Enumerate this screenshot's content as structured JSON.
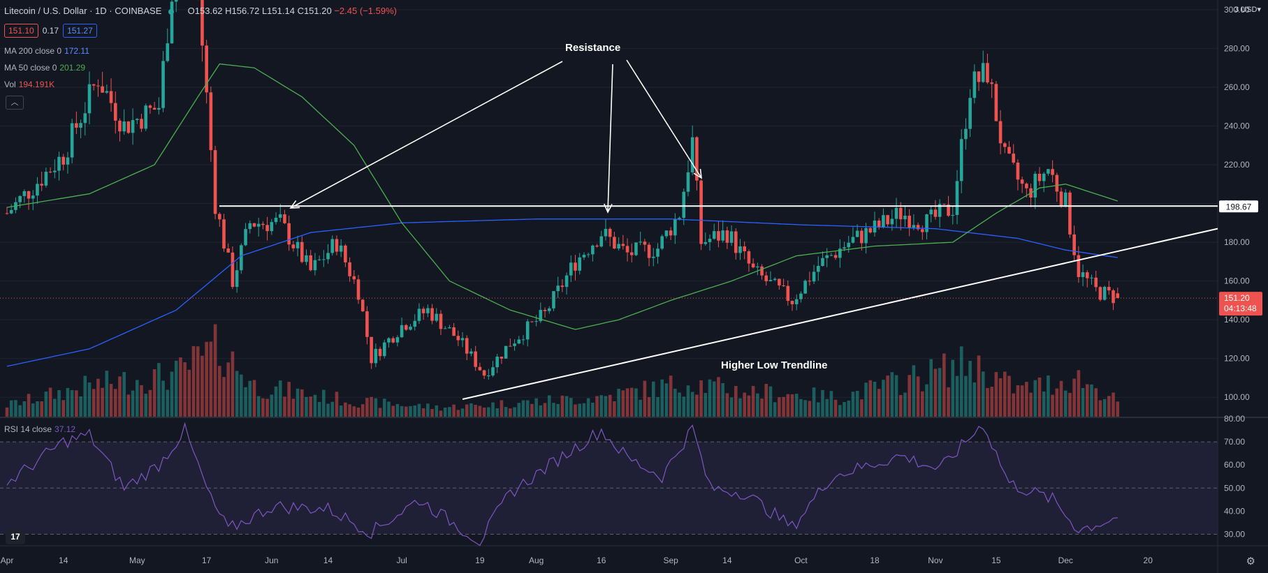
{
  "header": {
    "symbol": "Litecoin / U.S. Dollar · 1D · COINBASE",
    "open": "O153.62",
    "high": "H156.72",
    "low": "L151.14",
    "close": "C151.20",
    "change": "−2.45 (−1.59%)",
    "bid": "151.10",
    "spread": "0.17",
    "ask": "151.27"
  },
  "indicators": {
    "ma200_label": "MA 200 close 0",
    "ma200_value": "172.11",
    "ma50_label": "MA 50 close 0",
    "ma50_value": "201.29",
    "vol_label": "Vol",
    "vol_value": "194.191K",
    "rsi_label": "RSI 14 close",
    "rsi_value": "37.12",
    "collapse_icon": "chevron-up-icon"
  },
  "scale": {
    "currency": "3 USD▾",
    "price_ticks": [
      "300.00",
      "280.00",
      "260.00",
      "240.00",
      "220.00",
      "200.00",
      "180.00",
      "160.00",
      "140.00",
      "120.00",
      "100.00"
    ],
    "rsi_ticks": [
      "80.00",
      "70.00",
      "60.00",
      "50.00",
      "40.00",
      "30.00"
    ],
    "resistance_label": "198.67",
    "price_label": "151.20",
    "countdown": "04:13:48"
  },
  "annotations": {
    "resistance": "Resistance",
    "trendline": "Higher Low Trendline"
  },
  "time_axis": [
    "Apr",
    "14",
    "May",
    "17",
    "Jun",
    "14",
    "Jul",
    "19",
    "Aug",
    "16",
    "Sep",
    "14",
    "Oct",
    "18",
    "Nov",
    "15",
    "Dec",
    "20"
  ],
  "colors": {
    "bg": "#131722",
    "up": "#26a69a",
    "down": "#ef5350",
    "ma50": "#4caf50",
    "ma200": "#2962ff",
    "rsi": "#7e57c2"
  },
  "chart_data": {
    "type": "candlestick",
    "title": "Litecoin / U.S. Dollar · 1D · COINBASE",
    "ylim": [
      90,
      305
    ],
    "rsi_ylim": [
      25,
      80
    ],
    "resistance_level": 198.67,
    "trendline": {
      "from": [
        "Jul 19",
        99
      ],
      "to": [
        "Dec 25",
        187
      ]
    },
    "close_anchors": [
      {
        "date": "Apr 1",
        "close": 195
      },
      {
        "date": "Apr 14",
        "close": 225
      },
      {
        "date": "Apr 22",
        "close": 265
      },
      {
        "date": "Apr 28",
        "close": 240
      },
      {
        "date": "May 6",
        "close": 250
      },
      {
        "date": "May 10",
        "close": 330
      },
      {
        "date": "May 15",
        "close": 310
      },
      {
        "date": "May 19",
        "close": 200
      },
      {
        "date": "May 23",
        "close": 160
      },
      {
        "date": "May 27",
        "close": 190
      },
      {
        "date": "Jun 3",
        "close": 190
      },
      {
        "date": "Jun 10",
        "close": 165
      },
      {
        "date": "Jun 16",
        "close": 180
      },
      {
        "date": "Jun 21",
        "close": 155
      },
      {
        "date": "Jun 24",
        "close": 120
      },
      {
        "date": "Jul 1",
        "close": 137
      },
      {
        "date": "Jul 7",
        "close": 145
      },
      {
        "date": "Jul 14",
        "close": 130
      },
      {
        "date": "Jul 20",
        "close": 112
      },
      {
        "date": "Jul 26",
        "close": 128
      },
      {
        "date": "Aug 3",
        "close": 143
      },
      {
        "date": "Aug 10",
        "close": 170
      },
      {
        "date": "Aug 16",
        "close": 185
      },
      {
        "date": "Aug 22",
        "close": 174
      },
      {
        "date": "Aug 29",
        "close": 177
      },
      {
        "date": "Sep 3",
        "close": 195
      },
      {
        "date": "Sep 6",
        "close": 232
      },
      {
        "date": "Sep 8",
        "close": 180
      },
      {
        "date": "Sep 14",
        "close": 185
      },
      {
        "date": "Sep 20",
        "close": 165
      },
      {
        "date": "Sep 29",
        "close": 150
      },
      {
        "date": "Oct 5",
        "close": 168
      },
      {
        "date": "Oct 12",
        "close": 180
      },
      {
        "date": "Oct 18",
        "close": 187
      },
      {
        "date": "Oct 24",
        "close": 195
      },
      {
        "date": "Oct 30",
        "close": 190
      },
      {
        "date": "Nov 5",
        "close": 198
      },
      {
        "date": "Nov 9",
        "close": 260
      },
      {
        "date": "Nov 13",
        "close": 268
      },
      {
        "date": "Nov 17",
        "close": 223
      },
      {
        "date": "Nov 22",
        "close": 205
      },
      {
        "date": "Nov 27",
        "close": 218
      },
      {
        "date": "Dec 1",
        "close": 200
      },
      {
        "date": "Dec 4",
        "close": 165
      },
      {
        "date": "Dec 8",
        "close": 155
      },
      {
        "date": "Dec 13",
        "close": 151.2
      }
    ],
    "ma50_anchors": [
      {
        "date": "Apr 1",
        "value": 198
      },
      {
        "date": "Apr 20",
        "value": 205
      },
      {
        "date": "May 5",
        "value": 220
      },
      {
        "date": "May 15",
        "value": 255
      },
      {
        "date": "May 20",
        "value": 272
      },
      {
        "date": "May 28",
        "value": 270
      },
      {
        "date": "Jun 8",
        "value": 255
      },
      {
        "date": "Jun 20",
        "value": 230
      },
      {
        "date": "Jul 1",
        "value": 190
      },
      {
        "date": "Jul 12",
        "value": 160
      },
      {
        "date": "Jul 26",
        "value": 145
      },
      {
        "date": "Aug 10",
        "value": 135
      },
      {
        "date": "Aug 20",
        "value": 140
      },
      {
        "date": "Sep 1",
        "value": 150
      },
      {
        "date": "Sep 15",
        "value": 160
      },
      {
        "date": "Sep 30",
        "value": 173
      },
      {
        "date": "Oct 18",
        "value": 178
      },
      {
        "date": "Nov 5",
        "value": 180
      },
      {
        "date": "Nov 15",
        "value": 195
      },
      {
        "date": "Nov 25",
        "value": 208
      },
      {
        "date": "Dec 1",
        "value": 210
      },
      {
        "date": "Dec 13",
        "value": 201.29
      }
    ],
    "ma200_anchors": [
      {
        "date": "Apr 1",
        "value": 116
      },
      {
        "date": "Apr 20",
        "value": 125
      },
      {
        "date": "May 10",
        "value": 145
      },
      {
        "date": "May 25",
        "value": 173
      },
      {
        "date": "Jun 10",
        "value": 185
      },
      {
        "date": "Jul 1",
        "value": 190
      },
      {
        "date": "Aug 1",
        "value": 192
      },
      {
        "date": "Sep 1",
        "value": 192
      },
      {
        "date": "Oct 1",
        "value": 189
      },
      {
        "date": "Nov 1",
        "value": 187
      },
      {
        "date": "Nov 20",
        "value": 182
      },
      {
        "date": "Dec 1",
        "value": 176
      },
      {
        "date": "Dec 13",
        "value": 172.11
      }
    ],
    "volume_anchors": [
      {
        "date": "Apr 1",
        "value": 0.15
      },
      {
        "date": "Apr 20",
        "value": 0.4
      },
      {
        "date": "May 10",
        "value": 0.55
      },
      {
        "date": "May 20",
        "value": 0.9
      },
      {
        "date": "May 28",
        "value": 0.4
      },
      {
        "date": "Jun 20",
        "value": 0.2
      },
      {
        "date": "Jul 10",
        "value": 0.12
      },
      {
        "date": "Jul 20",
        "value": 0.15
      },
      {
        "date": "Aug 15",
        "value": 0.25
      },
      {
        "date": "Sep 6",
        "value": 0.45
      },
      {
        "date": "Sep 14",
        "value": 0.35
      },
      {
        "date": "Oct 10",
        "value": 0.25
      },
      {
        "date": "Nov 9",
        "value": 0.7
      },
      {
        "date": "Nov 20",
        "value": 0.35
      },
      {
        "date": "Dec 4",
        "value": 0.5
      },
      {
        "date": "Dec 13",
        "value": 0.2
      }
    ],
    "rsi_anchors": [
      {
        "date": "Apr 1",
        "value": 52
      },
      {
        "date": "Apr 14",
        "value": 70
      },
      {
        "date": "Apr 20",
        "value": 73
      },
      {
        "date": "Apr 28",
        "value": 50
      },
      {
        "date": "May 6",
        "value": 60
      },
      {
        "date": "May 12",
        "value": 75
      },
      {
        "date": "May 18",
        "value": 45
      },
      {
        "date": "May 22",
        "value": 32
      },
      {
        "date": "Jun 1",
        "value": 42
      },
      {
        "date": "Jun 14",
        "value": 41
      },
      {
        "date": "Jun 24",
        "value": 31
      },
      {
        "date": "Jul 5",
        "value": 45
      },
      {
        "date": "Jul 19",
        "value": 27
      },
      {
        "date": "Jul 26",
        "value": 48
      },
      {
        "date": "Aug 8",
        "value": 65
      },
      {
        "date": "Aug 16",
        "value": 75
      },
      {
        "date": "Aug 22",
        "value": 63
      },
      {
        "date": "Aug 30",
        "value": 55
      },
      {
        "date": "Sep 6",
        "value": 76
      },
      {
        "date": "Sep 10",
        "value": 50
      },
      {
        "date": "Sep 18",
        "value": 48
      },
      {
        "date": "Sep 29",
        "value": 33
      },
      {
        "date": "Oct 8",
        "value": 55
      },
      {
        "date": "Oct 24",
        "value": 64
      },
      {
        "date": "Nov 2",
        "value": 58
      },
      {
        "date": "Nov 12",
        "value": 78
      },
      {
        "date": "Nov 18",
        "value": 52
      },
      {
        "date": "Nov 28",
        "value": 45
      },
      {
        "date": "Dec 4",
        "value": 32
      },
      {
        "date": "Dec 13",
        "value": 37.12
      }
    ]
  }
}
